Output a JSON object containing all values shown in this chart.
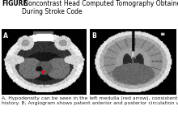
{
  "title_bold": "FIGURE",
  "title_normal": " Noncontrast Head Computed Tomography Obtained\nDuring Stroke Code",
  "caption_line1": "A, Hypodensity can be seen in the left medulla (red arrow), consistent with patient’s prior stroke",
  "caption_line2": "history. B, Angiogram shows patent anterior and posterior circulation vasculature.",
  "label_A": "A",
  "label_B": "B",
  "title_fontsize": 5.5,
  "caption_fontsize": 4.4,
  "label_fontsize": 5.5
}
